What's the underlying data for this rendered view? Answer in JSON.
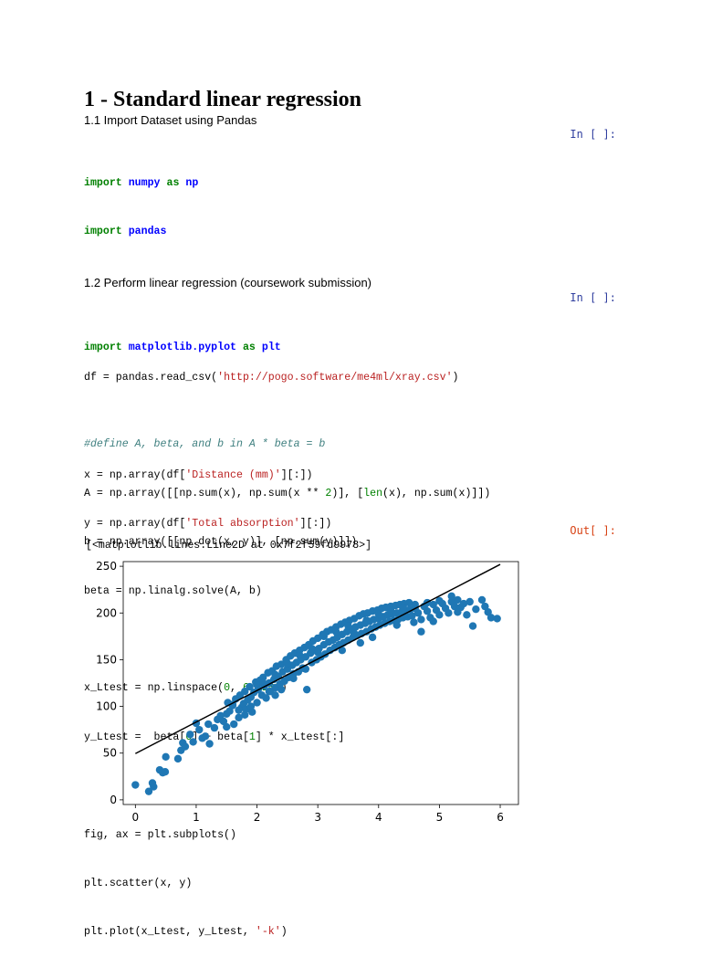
{
  "heading": "1 - Standard linear regression",
  "sections": {
    "s1": "1.1 Import Dataset using Pandas",
    "s2": "1.2 Perform linear regression (coursework submission)"
  },
  "prompts": {
    "in1": "In [ ]:",
    "in2": "In [ ]:",
    "out1": "Out[ ]:"
  },
  "cell1": {
    "l1": {
      "kw1": "import",
      "mod": "numpy",
      "kw2": "as",
      "alias": "np"
    },
    "l2": {
      "kw1": "import",
      "mod": "pandas"
    },
    "l3": {
      "pre": "df = pandas.read_csv(",
      "str": "'http://pogo.software/me4ml/xray.csv'",
      "post": ")"
    },
    "l4": {
      "pre": "x = np.array(df[",
      "str": "'Distance (mm)'",
      "post": "][:])"
    },
    "l5": {
      "pre": "y = np.array(df[",
      "str": "'Total absorption'",
      "post": "][:])"
    }
  },
  "cell2": {
    "l1": {
      "kw1": "import",
      "mod": "matplotlib.pyplot",
      "kw2": "as",
      "alias": "plt"
    },
    "comment": "#define A, beta, and b in A * beta = b",
    "a": {
      "pre": "A = np.array([[np.sum(x), np.sum(x ** ",
      "n2": "2",
      "mid": ")], [",
      "len": "len",
      "post": "(x), np.sum(x)]])"
    },
    "b": "b = np.array([[np.dot(x, y)], [np.sum(y)]])",
    "beta": "beta = np.linalg.solve(A, b)",
    "xl": {
      "pre": "x_Ltest = np.linspace(",
      "n0": "0",
      "c1": ", ",
      "n6": "6",
      "c2": ", ",
      "n200": "200",
      "post": ")"
    },
    "yl": {
      "pre": "y_Ltest =  beta[",
      "n0": "0",
      "mid": "] + beta[",
      "n1": "1",
      "post": "] * x_Ltest[:]"
    },
    "fig": "fig, ax = plt.subplots()",
    "scatter": "plt.scatter(x, y)",
    "plot": {
      "pre": "plt.plot(x_Ltest, y_Ltest, ",
      "str": "'-k'",
      "post": ")"
    }
  },
  "output_text": "[<matplotlib.lines.Line2D at 0x7f2f59fd9978>]",
  "chart_data": {
    "type": "scatter",
    "xlim": [
      -0.2,
      6.3
    ],
    "ylim": [
      -5,
      255
    ],
    "xticks": [
      "0",
      "1",
      "2",
      "3",
      "4",
      "5",
      "6"
    ],
    "yticks": [
      "0",
      "50",
      "100",
      "150",
      "200",
      "250"
    ],
    "scatter_color": "#1f77b4",
    "line_color": "#000000",
    "fit_line": {
      "x": [
        0,
        6
      ],
      "y": [
        49.5,
        252
      ]
    },
    "points": [
      [
        0.0,
        16
      ],
      [
        0.22,
        9
      ],
      [
        0.28,
        18
      ],
      [
        0.3,
        14
      ],
      [
        0.4,
        32
      ],
      [
        0.45,
        29
      ],
      [
        0.49,
        30
      ],
      [
        0.5,
        46
      ],
      [
        0.7,
        44
      ],
      [
        0.75,
        53
      ],
      [
        0.78,
        61
      ],
      [
        0.82,
        57
      ],
      [
        0.9,
        70
      ],
      [
        0.95,
        62
      ],
      [
        1.0,
        82
      ],
      [
        1.05,
        75
      ],
      [
        1.1,
        66
      ],
      [
        1.15,
        68
      ],
      [
        1.2,
        81
      ],
      [
        1.22,
        60
      ],
      [
        1.3,
        77
      ],
      [
        1.35,
        86
      ],
      [
        1.4,
        90
      ],
      [
        1.45,
        84
      ],
      [
        1.5,
        92
      ],
      [
        1.52,
        104
      ],
      [
        1.55,
        95
      ],
      [
        1.6,
        101
      ],
      [
        1.62,
        81
      ],
      [
        1.65,
        108
      ],
      [
        1.7,
        88
      ],
      [
        1.72,
        112
      ],
      [
        1.75,
        99
      ],
      [
        1.78,
        103
      ],
      [
        1.8,
        116
      ],
      [
        1.82,
        97
      ],
      [
        1.85,
        107
      ],
      [
        1.88,
        121
      ],
      [
        1.9,
        110
      ],
      [
        1.92,
        94
      ],
      [
        1.95,
        115
      ],
      [
        1.98,
        126
      ],
      [
        2.0,
        104
      ],
      [
        2.02,
        118
      ],
      [
        2.05,
        128
      ],
      [
        2.08,
        112
      ],
      [
        2.1,
        131
      ],
      [
        2.12,
        122
      ],
      [
        2.15,
        109
      ],
      [
        2.18,
        136
      ],
      [
        2.2,
        125
      ],
      [
        2.22,
        116
      ],
      [
        2.25,
        138
      ],
      [
        2.28,
        129
      ],
      [
        2.3,
        120
      ],
      [
        2.32,
        143
      ],
      [
        2.35,
        132
      ],
      [
        2.38,
        124
      ],
      [
        2.4,
        145
      ],
      [
        2.42,
        137
      ],
      [
        2.45,
        127
      ],
      [
        2.48,
        150
      ],
      [
        2.5,
        140
      ],
      [
        2.52,
        131
      ],
      [
        2.55,
        154
      ],
      [
        2.58,
        144
      ],
      [
        2.6,
        135
      ],
      [
        2.62,
        157
      ],
      [
        2.65,
        147
      ],
      [
        2.68,
        137
      ],
      [
        2.7,
        160
      ],
      [
        2.72,
        150
      ],
      [
        2.75,
        141
      ],
      [
        2.78,
        163
      ],
      [
        2.8,
        153
      ],
      [
        2.82,
        118
      ],
      [
        2.85,
        166
      ],
      [
        2.88,
        157
      ],
      [
        2.9,
        147
      ],
      [
        2.92,
        170
      ],
      [
        2.95,
        160
      ],
      [
        2.98,
        150
      ],
      [
        3.0,
        173
      ],
      [
        3.02,
        162
      ],
      [
        3.05,
        153
      ],
      [
        3.08,
        177
      ],
      [
        3.1,
        166
      ],
      [
        3.12,
        156
      ],
      [
        3.15,
        180
      ],
      [
        3.18,
        169
      ],
      [
        3.2,
        160
      ],
      [
        3.22,
        182
      ],
      [
        3.25,
        171
      ],
      [
        3.28,
        163
      ],
      [
        3.3,
        185
      ],
      [
        3.32,
        174
      ],
      [
        3.35,
        166
      ],
      [
        3.38,
        188
      ],
      [
        3.4,
        177
      ],
      [
        3.42,
        168
      ],
      [
        3.45,
        190
      ],
      [
        3.48,
        180
      ],
      [
        3.5,
        171
      ],
      [
        3.52,
        192
      ],
      [
        3.55,
        182
      ],
      [
        3.58,
        174
      ],
      [
        3.6,
        194
      ],
      [
        3.62,
        185
      ],
      [
        3.65,
        176
      ],
      [
        3.68,
        197
      ],
      [
        3.7,
        187
      ],
      [
        3.72,
        178
      ],
      [
        3.75,
        199
      ],
      [
        3.78,
        189
      ],
      [
        3.8,
        180
      ],
      [
        3.82,
        200
      ],
      [
        3.85,
        191
      ],
      [
        3.88,
        183
      ],
      [
        3.9,
        202
      ],
      [
        3.92,
        193
      ],
      [
        3.95,
        185
      ],
      [
        3.98,
        203
      ],
      [
        4.0,
        194
      ],
      [
        4.02,
        187
      ],
      [
        4.05,
        205
      ],
      [
        4.08,
        196
      ],
      [
        4.1,
        189
      ],
      [
        4.12,
        206
      ],
      [
        4.15,
        198
      ],
      [
        4.18,
        191
      ],
      [
        4.2,
        207
      ],
      [
        4.22,
        199
      ],
      [
        4.25,
        192
      ],
      [
        4.28,
        208
      ],
      [
        4.3,
        200
      ],
      [
        4.32,
        193
      ],
      [
        4.35,
        209
      ],
      [
        4.38,
        201
      ],
      [
        4.4,
        195
      ],
      [
        4.42,
        210
      ],
      [
        4.45,
        203
      ],
      [
        4.48,
        196
      ],
      [
        4.5,
        211
      ],
      [
        4.52,
        204
      ],
      [
        4.55,
        197
      ],
      [
        4.58,
        190
      ],
      [
        4.6,
        205
      ],
      [
        4.65,
        200
      ],
      [
        4.7,
        193
      ],
      [
        4.75,
        207
      ],
      [
        4.8,
        202
      ],
      [
        4.85,
        195
      ],
      [
        4.9,
        209
      ],
      [
        4.95,
        203
      ],
      [
        5.0,
        198
      ],
      [
        5.05,
        210
      ],
      [
        5.1,
        205
      ],
      [
        5.15,
        200
      ],
      [
        5.2,
        212
      ],
      [
        5.25,
        207
      ],
      [
        5.3,
        214
      ],
      [
        5.35,
        206
      ],
      [
        5.4,
        210
      ],
      [
        5.45,
        198
      ],
      [
        5.5,
        212
      ],
      [
        5.55,
        186
      ],
      [
        5.6,
        204
      ],
      [
        5.7,
        214
      ],
      [
        5.75,
        207
      ],
      [
        5.8,
        201
      ],
      [
        5.85,
        195
      ],
      [
        5.95,
        194
      ],
      [
        4.7,
        180
      ],
      [
        4.3,
        187
      ],
      [
        3.7,
        168
      ],
      [
        3.9,
        174
      ],
      [
        2.6,
        130
      ],
      [
        2.4,
        118
      ],
      [
        2.2,
        116
      ],
      [
        1.9,
        100
      ],
      [
        1.7,
        96
      ],
      [
        1.5,
        78
      ],
      [
        1.8,
        91
      ],
      [
        2.0,
        123
      ],
      [
        2.3,
        134
      ],
      [
        2.5,
        146
      ],
      [
        2.7,
        155
      ],
      [
        2.9,
        162
      ],
      [
        3.1,
        175
      ],
      [
        3.3,
        180
      ],
      [
        3.5,
        186
      ],
      [
        3.6,
        178
      ],
      [
        3.8,
        192
      ],
      [
        4.0,
        199
      ],
      [
        4.2,
        203
      ],
      [
        4.4,
        205
      ],
      [
        4.6,
        209
      ],
      [
        4.8,
        211
      ],
      [
        5.0,
        213
      ],
      [
        5.2,
        218
      ],
      [
        4.9,
        191
      ],
      [
        5.3,
        201
      ],
      [
        3.4,
        160
      ],
      [
        3.0,
        158
      ],
      [
        2.8,
        140
      ],
      [
        2.3,
        112
      ],
      [
        2.1,
        125
      ],
      [
        1.6,
        102
      ]
    ]
  }
}
